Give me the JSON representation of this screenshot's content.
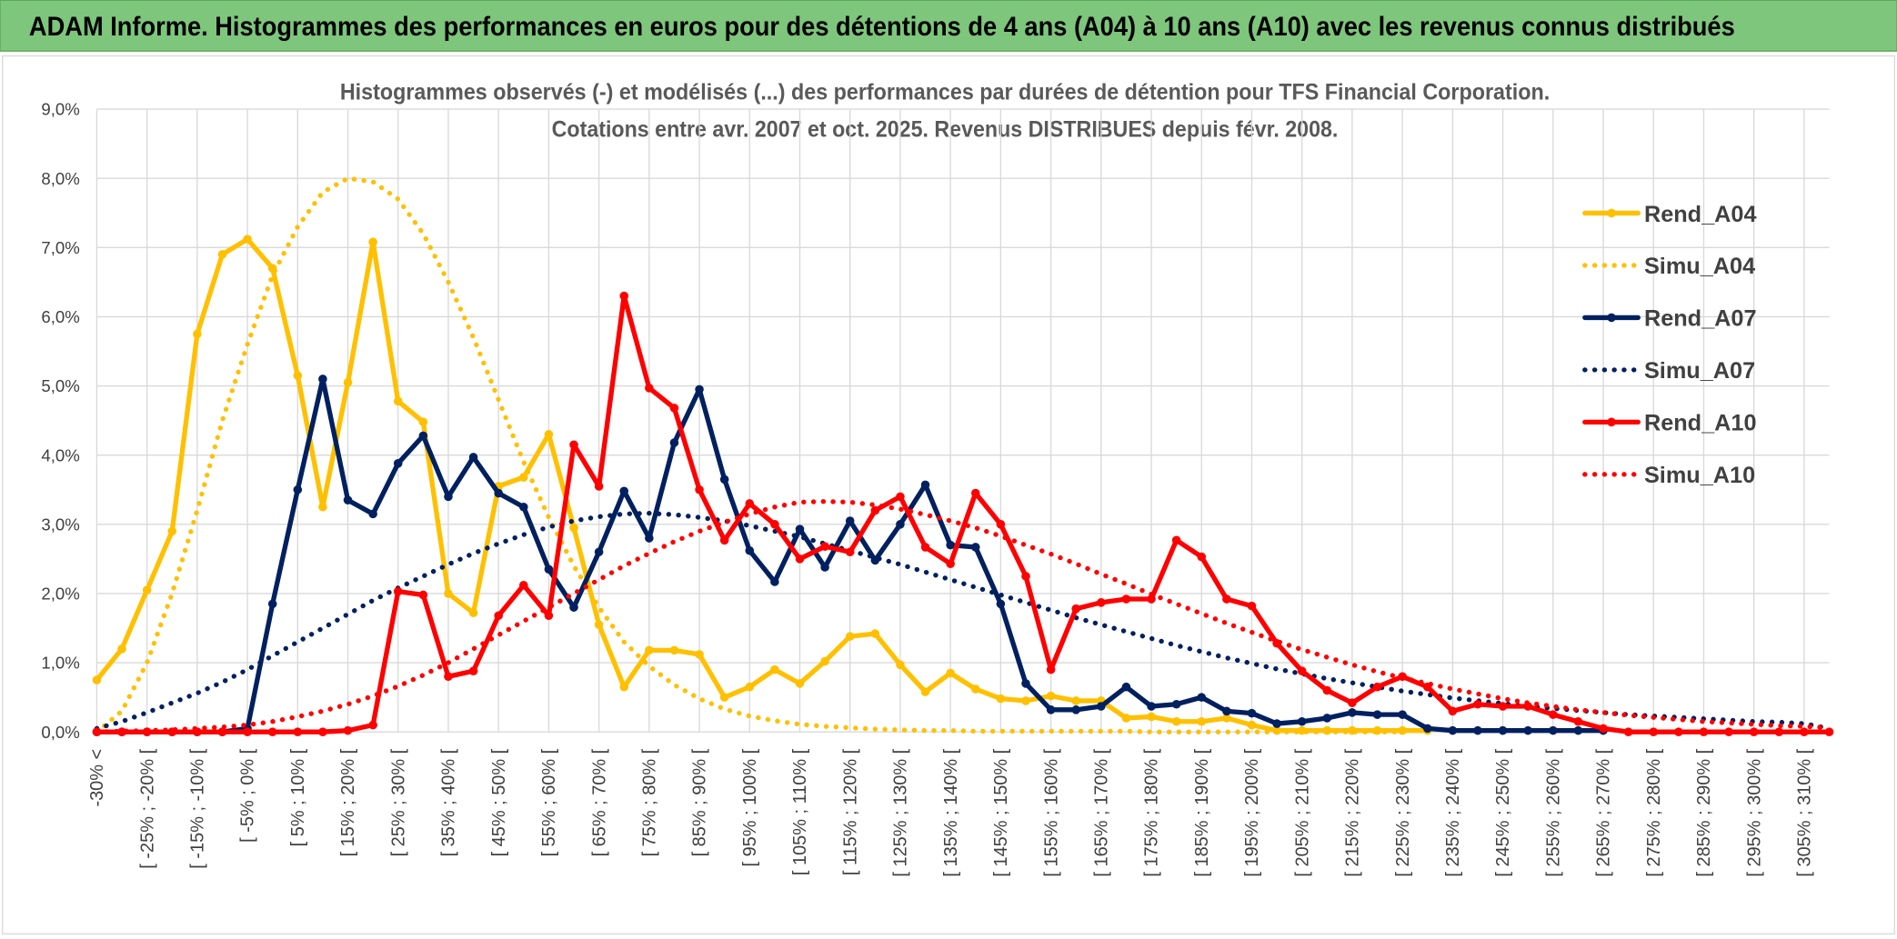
{
  "header": {
    "title": "ADAM Informe. Histogrammes des performances en euros pour des détentions de 4 ans (A04) à 10 ans (A10) avec les revenus connus distribués"
  },
  "chart_data": {
    "type": "line",
    "title": "Histogrammes observés (-) et modélisés (...) des performances par durées de détention pour TFS Financial Corporation.",
    "subtitle": "Cotations entre avr. 2007 et oct. 2025. Revenus DISTRIBUES depuis févr. 2008.",
    "categories": [
      "-30% <",
      null,
      "[ -25% ; -20% [",
      null,
      "[ -15% ; -10% [",
      null,
      "[ -5% ; 0% [",
      null,
      "[ 5% ; 10% [",
      null,
      "[ 15% ; 20% [",
      null,
      "[ 25% ; 30% [",
      null,
      "[ 35% ; 40% [",
      null,
      "[ 45% ; 50% [",
      null,
      "[ 55% ; 60% [",
      null,
      "[ 65% ; 70% [",
      null,
      "[ 75% ; 80% [",
      null,
      "[ 85% ; 90% [",
      null,
      "[ 95% ; 100% [",
      null,
      "[ 105% ; 110% [",
      null,
      "[ 115% ; 120% [",
      null,
      "[ 125% ; 130% [",
      null,
      "[ 135% ; 140% [",
      null,
      "[ 145% ; 150% [",
      null,
      "[ 155% ; 160% [",
      null,
      "[ 165% ; 170% [",
      null,
      "[ 175% ; 180% [",
      null,
      "[ 185% ; 190% [",
      null,
      "[ 195% ; 200% [",
      null,
      "[ 205% ; 210% [",
      null,
      "[ 215% ; 220% [",
      null,
      "[ 225% ; 230% [",
      null,
      "[ 235% ; 240% [",
      null,
      "[ 245% ; 250% [",
      null,
      "[ 255% ; 260% [",
      null,
      "[ 265% ; 270% [",
      null,
      "[ 275% ; 280% [",
      null,
      "[ 285% ; 290% [",
      null,
      "[ 295% ; 300% [",
      null,
      "[ 305% ; 310% [",
      null
    ],
    "series": [
      {
        "name": "Rend_A04",
        "color": "#ffc000",
        "style": "solid",
        "markers": true,
        "values": [
          0.75,
          1.2,
          2.05,
          2.9,
          5.75,
          6.9,
          7.12,
          6.7,
          5.15,
          3.25,
          5.05,
          7.08,
          4.78,
          4.48,
          2.0,
          1.72,
          3.55,
          3.68,
          4.3,
          2.95,
          1.55,
          0.65,
          1.18,
          1.18,
          1.12,
          0.5,
          0.65,
          0.9,
          0.7,
          1.02,
          1.38,
          1.42,
          0.97,
          0.58,
          0.85,
          0.62,
          0.48,
          0.45,
          0.52,
          0.45,
          0.45,
          0.2,
          0.22,
          0.15,
          0.15,
          0.2,
          0.1,
          0.02,
          0.02,
          0.02,
          0.02,
          0.02,
          0.02,
          0.02,
          null,
          null,
          null,
          null,
          null,
          null,
          null,
          null,
          null,
          null,
          null,
          null,
          null,
          null,
          null,
          null
        ]
      },
      {
        "name": "Simu_A04",
        "color": "#ffc000",
        "style": "dotted",
        "markers": false,
        "values": [
          0,
          0.3,
          1.0,
          2.0,
          3.2,
          4.5,
          5.6,
          6.6,
          7.3,
          7.8,
          8.0,
          7.95,
          7.7,
          7.2,
          6.5,
          5.7,
          4.8,
          3.9,
          3.1,
          2.4,
          1.8,
          1.3,
          0.95,
          0.68,
          0.48,
          0.33,
          0.23,
          0.16,
          0.11,
          0.08,
          0.06,
          0.04,
          0.03,
          0.02,
          0.02,
          0.01,
          0.01,
          0.01,
          0.01,
          0.01,
          0.01,
          0.01,
          0,
          0,
          0,
          0,
          0,
          0,
          0,
          0,
          0,
          0,
          0,
          null,
          null,
          null,
          null,
          null,
          null,
          null,
          null,
          null,
          null,
          null,
          null,
          null,
          null,
          null,
          null,
          null
        ]
      },
      {
        "name": "Rend_A07",
        "color": "#002060",
        "style": "solid",
        "markers": true,
        "values": [
          0,
          0,
          0,
          0,
          0,
          0,
          0.05,
          1.85,
          3.5,
          5.1,
          3.35,
          3.15,
          3.88,
          4.28,
          3.4,
          3.97,
          3.45,
          3.25,
          2.35,
          1.8,
          2.6,
          3.48,
          2.8,
          4.18,
          4.95,
          3.65,
          2.62,
          2.17,
          2.93,
          2.38,
          3.05,
          2.48,
          3.0,
          3.57,
          2.7,
          2.67,
          1.85,
          0.7,
          0.32,
          0.32,
          0.37,
          0.65,
          0.37,
          0.4,
          0.5,
          0.3,
          0.27,
          0.12,
          0.15,
          0.2,
          0.28,
          0.25,
          0.25,
          0.05,
          0.02,
          0.02,
          0.02,
          0.02,
          0.02,
          0.02,
          0.02,
          null,
          null,
          null,
          null,
          null,
          null,
          null,
          null,
          null
        ]
      },
      {
        "name": "Simu_A07",
        "color": "#002060",
        "style": "dotted",
        "markers": false,
        "values": [
          0.05,
          0.15,
          0.28,
          0.42,
          0.56,
          0.72,
          0.9,
          1.1,
          1.3,
          1.5,
          1.7,
          1.9,
          2.08,
          2.25,
          2.42,
          2.58,
          2.72,
          2.85,
          2.96,
          3.05,
          3.11,
          3.15,
          3.16,
          3.14,
          3.1,
          3.05,
          2.98,
          2.9,
          2.82,
          2.72,
          2.62,
          2.52,
          2.42,
          2.31,
          2.2,
          2.09,
          1.98,
          1.87,
          1.76,
          1.65,
          1.55,
          1.45,
          1.35,
          1.25,
          1.16,
          1.07,
          0.99,
          0.91,
          0.84,
          0.77,
          0.71,
          0.65,
          0.59,
          0.54,
          0.49,
          0.45,
          0.41,
          0.37,
          0.34,
          0.31,
          0.28,
          0.25,
          0.23,
          0.21,
          0.19,
          0.17,
          0.15,
          0.14,
          0.12,
          0.05
        ]
      },
      {
        "name": "Rend_A10",
        "color": "#ff0000",
        "style": "solid",
        "markers": true,
        "values": [
          0,
          0,
          0,
          0,
          0,
          0,
          0,
          0,
          0,
          0,
          0.02,
          0.1,
          2.03,
          1.98,
          0.8,
          0.88,
          1.68,
          2.12,
          1.68,
          4.15,
          3.55,
          6.3,
          4.97,
          4.68,
          3.5,
          2.77,
          3.3,
          3.0,
          2.5,
          2.68,
          2.6,
          3.2,
          3.4,
          2.67,
          2.43,
          3.45,
          3.0,
          2.25,
          0.9,
          1.78,
          1.87,
          1.92,
          1.92,
          2.77,
          2.53,
          1.92,
          1.82,
          1.28,
          0.88,
          0.6,
          0.42,
          0.65,
          0.8,
          0.65,
          0.3,
          0.4,
          0.37,
          0.37,
          0.25,
          0.15,
          0.05,
          0,
          0,
          0,
          0,
          0,
          0,
          0,
          0,
          0
        ]
      },
      {
        "name": "Simu_A10",
        "color": "#ff0000",
        "style": "dotted",
        "markers": false,
        "values": [
          0,
          0.01,
          0.02,
          0.03,
          0.05,
          0.07,
          0.1,
          0.15,
          0.22,
          0.3,
          0.4,
          0.52,
          0.66,
          0.82,
          1.0,
          1.2,
          1.4,
          1.6,
          1.8,
          2.0,
          2.2,
          2.4,
          2.58,
          2.75,
          2.9,
          3.03,
          3.15,
          3.25,
          3.32,
          3.33,
          3.32,
          3.28,
          3.22,
          3.14,
          3.05,
          2.95,
          2.83,
          2.7,
          2.57,
          2.43,
          2.28,
          2.14,
          1.99,
          1.85,
          1.71,
          1.57,
          1.44,
          1.31,
          1.19,
          1.08,
          0.97,
          0.87,
          0.78,
          0.7,
          0.62,
          0.55,
          0.48,
          0.42,
          0.37,
          0.32,
          0.28,
          0.24,
          0.21,
          0.18,
          0.15,
          0.13,
          0.11,
          0.09,
          0.08,
          0.06
        ]
      }
    ],
    "ylim": [
      0,
      9
    ],
    "yticks": [
      {
        "value": 0,
        "label": "0,0%"
      },
      {
        "value": 1,
        "label": "1,0%"
      },
      {
        "value": 2,
        "label": "2,0%"
      },
      {
        "value": 3,
        "label": "3,0%"
      },
      {
        "value": 4,
        "label": "4,0%"
      },
      {
        "value": 5,
        "label": "5,0%"
      },
      {
        "value": 6,
        "label": "6,0%"
      },
      {
        "value": 7,
        "label": "7,0%"
      },
      {
        "value": 8,
        "label": "8,0%"
      },
      {
        "value": 9,
        "label": "9,0%"
      }
    ],
    "grid": true,
    "legend": "right"
  }
}
